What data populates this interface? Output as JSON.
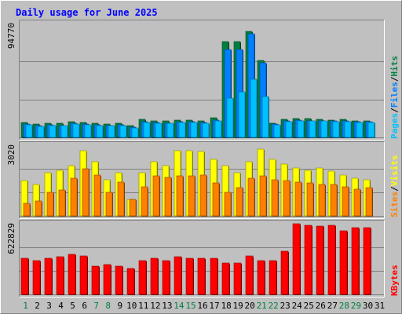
{
  "chart_data": {
    "type": "bar",
    "title": "Daily usage for June 2025",
    "days": [
      "1",
      "2",
      "3",
      "4",
      "5",
      "6",
      "7",
      "8",
      "9",
      "10",
      "11",
      "12",
      "13",
      "14",
      "15",
      "16",
      "17",
      "18",
      "19",
      "20",
      "21",
      "22",
      "23",
      "24",
      "25",
      "26",
      "27",
      "28",
      "29",
      "30",
      "31"
    ],
    "weekend_days": [
      1,
      7,
      8,
      14,
      15,
      21,
      22,
      28,
      29
    ],
    "colors": {
      "background": "#c0c0c0",
      "plot_bg": "#c0c0c0",
      "hits": "#008040",
      "files": "#0080ff",
      "pages": "#00c0ff",
      "visits": "#ffff00",
      "sites": "#ff8000",
      "kbytes": "#ff0000",
      "title": "#0000ff",
      "weekday_label": "#000000",
      "weekend_label": "#008040"
    },
    "panels": [
      {
        "id": "requests",
        "max_label": "94770",
        "ylim": [
          0,
          94770
        ],
        "series": [
          {
            "name": "Hits",
            "key": "hits",
            "values": [
              12500,
              11000,
              12000,
              11500,
              13000,
              12500,
              11500,
              11000,
              11500,
              9500,
              15000,
              14000,
              13500,
              14500,
              14500,
              14000,
              16500,
              80000,
              80000,
              88500,
              64000,
              12000,
              15000,
              16000,
              15500,
              15000,
              14500,
              15000,
              14000,
              14000,
              0
            ]
          },
          {
            "name": "Files",
            "key": "files",
            "values": [
              11000,
              9500,
              10500,
              10000,
              11500,
              11000,
              10500,
              10000,
              10500,
              8500,
              13000,
              12500,
              12000,
              13000,
              13000,
              12500,
              14500,
              73000,
              73000,
              86000,
              62000,
              11000,
              13500,
              14500,
              14000,
              14000,
              13500,
              13500,
              13000,
              13000,
              0
            ]
          },
          {
            "name": "Pages",
            "key": "pages",
            "values": [
              10500,
              9000,
              10000,
              9500,
              11000,
              10500,
              10000,
              9500,
              10000,
              8000,
              12500,
              12000,
              11500,
              12500,
              12500,
              12000,
              13500,
              33000,
              38000,
              48500,
              34000,
              10500,
              13000,
              14000,
              13500,
              13500,
              13000,
              13000,
              12500,
              12500,
              0
            ]
          }
        ],
        "legend": [
          {
            "text": "Pages",
            "key": "pages"
          },
          {
            "text": "Files",
            "key": "files"
          },
          {
            "text": "Hits",
            "key": "hits"
          }
        ]
      },
      {
        "id": "visitors",
        "max_label": "3020",
        "ylim": [
          0,
          3020
        ],
        "series": [
          {
            "name": "Visits",
            "key": "visits",
            "values": [
              1500,
              1350,
              1850,
              1950,
              2150,
              2800,
              2300,
              1550,
              1850,
              720,
              1850,
              2300,
              2150,
              2800,
              2800,
              2750,
              2400,
              2150,
              1850,
              2300,
              2850,
              2400,
              2200,
              2050,
              1950,
              2050,
              1900,
              1750,
              1600,
              1550,
              0
            ]
          },
          {
            "name": "Sites",
            "key": "sites",
            "values": [
              550,
              650,
              1000,
              1100,
              1600,
              2000,
              1750,
              1000,
              1450,
              720,
              1250,
              1700,
              1650,
              1700,
              1700,
              1750,
              1400,
              1000,
              1200,
              1600,
              1700,
              1550,
              1500,
              1450,
              1400,
              1350,
              1350,
              1250,
              1150,
              1200,
              0
            ]
          }
        ],
        "legend": [
          {
            "text": "Sites",
            "key": "sites"
          },
          {
            "text": "Visits",
            "key": "visits"
          }
        ]
      },
      {
        "id": "kbytes",
        "max_label": "622829",
        "ylim": [
          0,
          622829
        ],
        "series": [
          {
            "name": "KBytes",
            "key": "kbytes",
            "values": [
              315000,
              296000,
              315000,
              331000,
              355000,
              342000,
              249000,
              266000,
              249000,
              227000,
              296000,
              315000,
              296000,
              331000,
              315000,
              315000,
              315000,
              279000,
              279000,
              342000,
              296000,
              296000,
              379000,
              622829,
              611000,
              600000,
              611000,
              563000,
              586000,
              586000,
              0
            ]
          }
        ],
        "legend": [
          {
            "text": "KBytes",
            "key": "kbytes"
          }
        ]
      }
    ]
  }
}
